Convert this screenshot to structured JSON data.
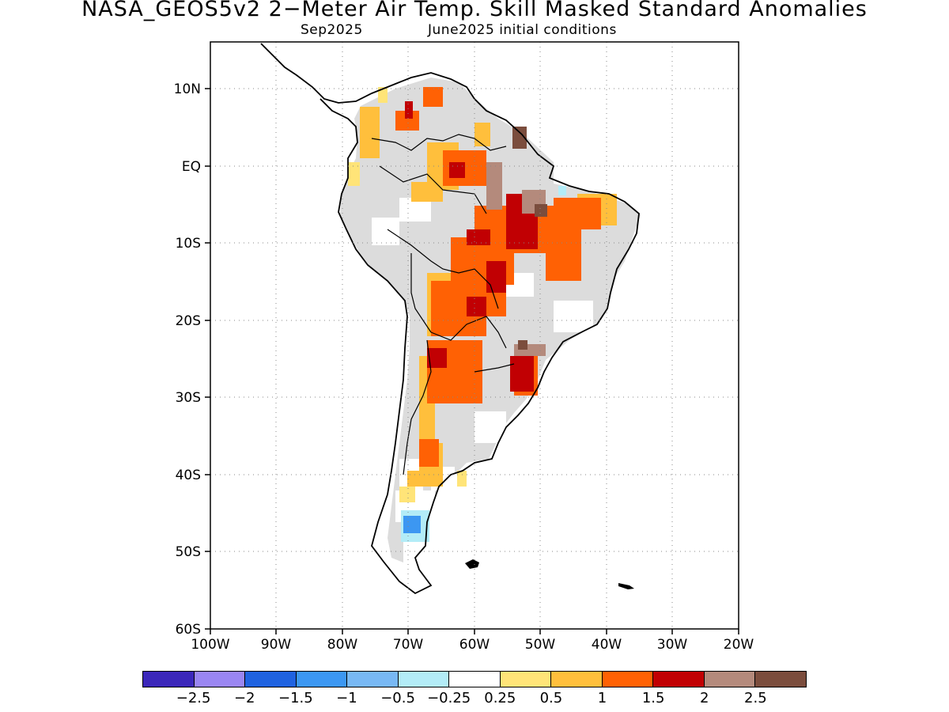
{
  "title": "NASA_GEOS5v2 2−Meter Air Temp. Skill Masked Standard Anomalies",
  "subtitle_left": "Sep2025",
  "subtitle_right": "June2025 initial conditions",
  "map": {
    "region": "South America",
    "lat_ticks": [
      "10N",
      "EQ",
      "10S",
      "20S",
      "30S",
      "40S",
      "50S",
      "60S"
    ],
    "lon_ticks": [
      "100W",
      "90W",
      "80W",
      "70W",
      "60W",
      "50W",
      "40W",
      "30W",
      "20W"
    ],
    "lat_range": [
      -60,
      15.5
    ],
    "lon_range": [
      -100,
      -20
    ],
    "grid": "dotted"
  },
  "colorbar": {
    "colors": [
      "#3b27ba",
      "#9a86f2",
      "#1f62e0",
      "#3c97f2",
      "#78b8f4",
      "#b3ecf7",
      "#ffffff",
      "#ffe478",
      "#ffbf3c",
      "#ff6104",
      "#c10003",
      "#b48a7c",
      "#7b4d3d"
    ],
    "labels": [
      "−2.5",
      "−2",
      "−1.5",
      "−1",
      "−0.5",
      "−0.25",
      "0.25",
      "0.5",
      "1",
      "1.5",
      "2",
      "2.5"
    ]
  }
}
